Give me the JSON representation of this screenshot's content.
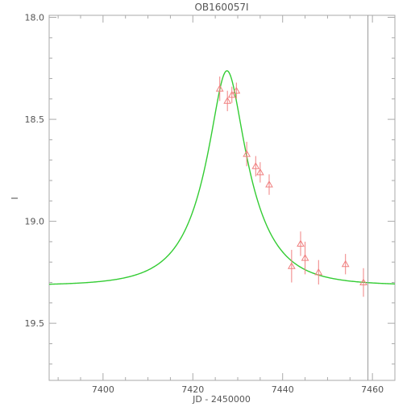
{
  "chart_data": {
    "type": "scatter",
    "title": "OB160057I",
    "xlabel": "JD - 2450000",
    "ylabel": "I",
    "xlim": [
      7388,
      7465
    ],
    "ylim": [
      19.78,
      17.99
    ],
    "y_inverted": true,
    "x_ticks": [
      7400,
      7420,
      7440,
      7460
    ],
    "x_tick_labels": [
      "7400",
      "7420",
      "7440",
      "7460"
    ],
    "y_ticks": [
      18.0,
      18.5,
      19.0,
      19.5
    ],
    "y_tick_labels": [
      "18.0",
      "18.5",
      "19.0",
      "19.5"
    ],
    "grid": false,
    "points": [
      {
        "x": 7426.0,
        "y": 18.35,
        "err": 0.06
      },
      {
        "x": 7427.7,
        "y": 18.41,
        "err": 0.05
      },
      {
        "x": 7428.7,
        "y": 18.38,
        "err": 0.04
      },
      {
        "x": 7429.7,
        "y": 18.36,
        "err": 0.04
      },
      {
        "x": 7432.0,
        "y": 18.67,
        "err": 0.06
      },
      {
        "x": 7434.0,
        "y": 18.73,
        "err": 0.05
      },
      {
        "x": 7435.0,
        "y": 18.76,
        "err": 0.05
      },
      {
        "x": 7437.0,
        "y": 18.82,
        "err": 0.05
      },
      {
        "x": 7442.0,
        "y": 19.22,
        "err": 0.08
      },
      {
        "x": 7444.0,
        "y": 19.11,
        "err": 0.06
      },
      {
        "x": 7445.0,
        "y": 19.18,
        "err": 0.08
      },
      {
        "x": 7448.0,
        "y": 19.25,
        "err": 0.06
      },
      {
        "x": 7454.0,
        "y": 19.21,
        "err": 0.05
      },
      {
        "x": 7458.0,
        "y": 19.3,
        "err": 0.07
      }
    ],
    "model": {
      "name": "",
      "t0": 7427.6,
      "u0": 0.3,
      "tE": 11.0,
      "I_base": 19.315,
      "fs": 0.67
    },
    "vertical_line_x": 7459.0,
    "colors": {
      "points": "#f08080",
      "model": "#33cc33",
      "vline": "#999999",
      "frame": "#aaaaaa",
      "text": "#555555"
    }
  }
}
